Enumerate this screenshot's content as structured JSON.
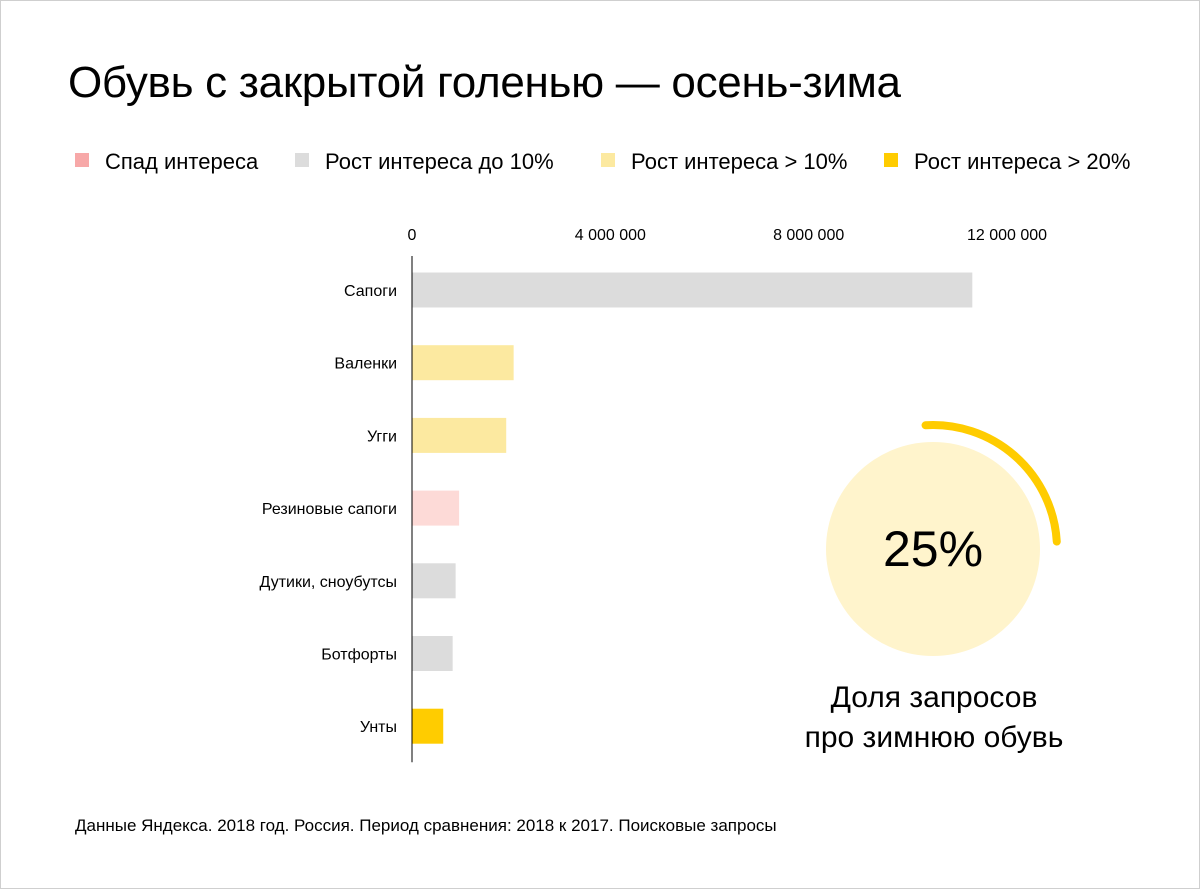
{
  "title": "Обувь с закрытой голенью — осень-зима",
  "legend": [
    {
      "label": "Спад интереса",
      "color": "#f7a8a8"
    },
    {
      "label": "Рост интереса до 10%",
      "color": "#dcdcdc"
    },
    {
      "label": "Рост интереса > 10%",
      "color": "#fce9a0"
    },
    {
      "label": "Рост интереса > 20%",
      "color": "#ffcc00"
    }
  ],
  "chart_data": {
    "type": "bar",
    "orientation": "horizontal",
    "title": "Обувь с закрытой голенью — осень-зима",
    "xlabel": "",
    "ylabel": "",
    "xlim": [
      0,
      12000000
    ],
    "x_ticks": [
      {
        "value": 0,
        "label": "0"
      },
      {
        "value": 4000000,
        "label": "4 000 000"
      },
      {
        "value": 8000000,
        "label": "8 000 000"
      },
      {
        "value": 12000000,
        "label": "12 000 000"
      }
    ],
    "categories": [
      "Сапоги",
      "Валенки",
      "Угги",
      "Резиновые сапоги",
      "Дутики, сноубутсы",
      "Ботфорты",
      "Унты"
    ],
    "values": [
      11300000,
      2050000,
      1900000,
      950000,
      880000,
      820000,
      630000
    ],
    "bar_colors": [
      "#dcdcdc",
      "#fce9a0",
      "#fce9a0",
      "#fddad7",
      "#dcdcdc",
      "#dcdcdc",
      "#ffcc00"
    ],
    "legend_position": "top",
    "grid": false
  },
  "share": {
    "value_label": "25%",
    "fraction": 0.25,
    "caption_line1": "Доля запросов",
    "caption_line2": "про зимнюю обувь",
    "fill_color": "#fff4cc",
    "arc_color": "#ffcc00"
  },
  "footnote": "Данные Яндекса. 2018 год. Россия. Период сравнения: 2018 к 2017. Поисковые запросы"
}
